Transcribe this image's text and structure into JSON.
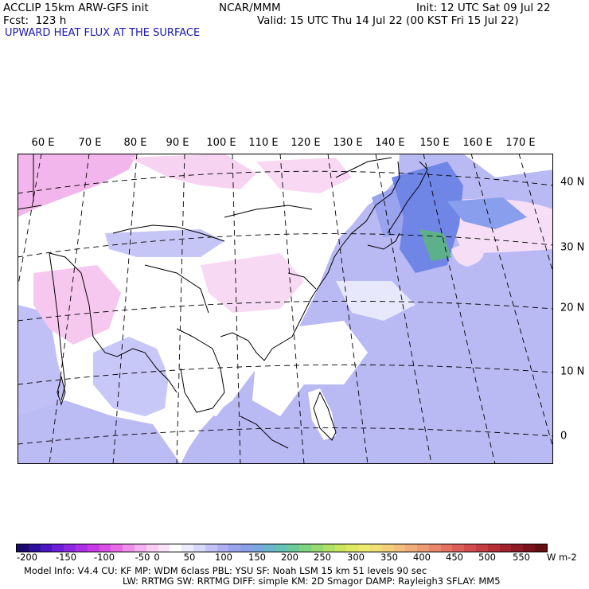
{
  "header": {
    "model": "ACCLIP 15km ARW-GFS init",
    "center": "NCAR/MMM",
    "init": "Init: 12 UTC Sat 09 Jul 22",
    "fcst": "Fcst:  123 h",
    "valid": "Valid: 15 UTC Thu 14 Jul 22 (00 KST Fri 15 Jul 22)",
    "field": "UPWARD HEAT FLUX AT THE SURFACE"
  },
  "map": {
    "lon_labels": [
      "60 E",
      "70 E",
      "80 E",
      "90 E",
      "100 E",
      "110 E",
      "120 E",
      "130 E",
      "140 E",
      "150 E",
      "160 E",
      "170 E"
    ],
    "lat_labels": [
      "40 N",
      "30 N",
      "20 N",
      "10 N",
      "0"
    ],
    "colors": {
      "land_neutral": "#ffffff",
      "negative_light": "#f7c8ef",
      "negative_mid": "#ef8fe3",
      "positive_light": "#c3c3f7",
      "positive_mid": "#9f9ff0",
      "ocean_low": "#b9b9f4",
      "kuroshio": "#6f86e6",
      "green_patch": "#5db08a",
      "coast": "#000000"
    }
  },
  "colorbar": {
    "tick_labels": [
      "-200",
      "-150",
      "-100",
      "-50",
      "0",
      "50",
      "100",
      "150",
      "200",
      "250",
      "300",
      "350",
      "400",
      "450",
      "500",
      "550"
    ],
    "unit": "W m-2",
    "colors": [
      "#1a0a6e",
      "#2d0fa0",
      "#4a17c2",
      "#6b1fd6",
      "#8d27e0",
      "#ad2fe6",
      "#c83ae6",
      "#dc4fe4",
      "#e86ae6",
      "#ef8fea",
      "#f5b0ef",
      "#f9ccf3",
      "#fbe3f8",
      "#ffffff",
      "#ececfc",
      "#d8d8fa",
      "#c3c3f7",
      "#aeb0f3",
      "#9aa3ee",
      "#8aa0e6",
      "#7aa8dc",
      "#6cb6cc",
      "#66c2b4",
      "#6ccb99",
      "#7ed382",
      "#96da70",
      "#b0e066",
      "#c9e560",
      "#dde963",
      "#ebe96e",
      "#f1df76",
      "#f2d07a",
      "#f2bf7c",
      "#f1ad7a",
      "#ee9a74",
      "#ea866c",
      "#e47262",
      "#dc5e58",
      "#d24c4d",
      "#c53c42",
      "#b52e38",
      "#a2222e",
      "#8e1a26",
      "#78131d",
      "#621014"
    ]
  },
  "footer": {
    "line1": "Model Info: V4.4       CU: KF       MP: WDM 6class  PBL: YSU        SF: Noah LSM      15 km    51 levels    90 sec",
    "line2": "LW: RRTMG    SW: RRTMG  DIFF: simple KM: 2D Smagor DAMP: Rayleigh3  SFLAY: MM5"
  }
}
